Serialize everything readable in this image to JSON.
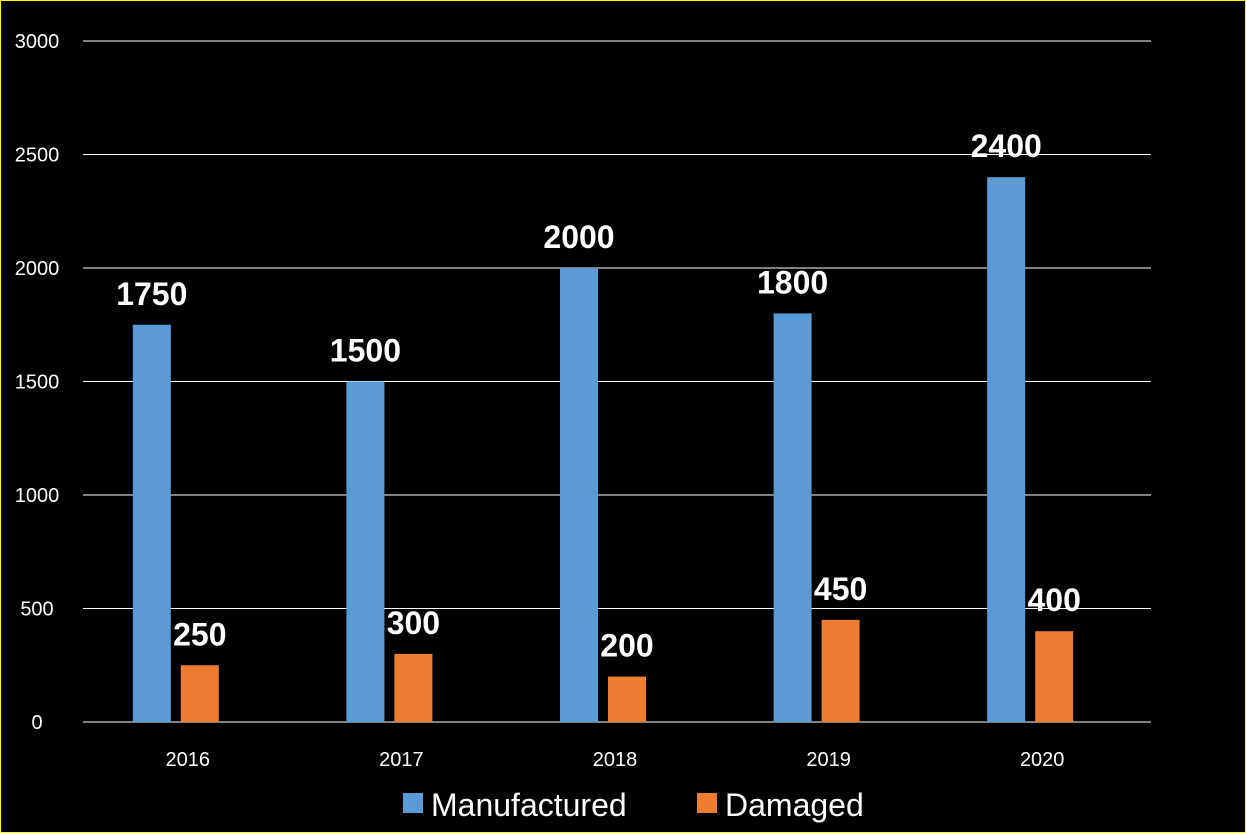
{
  "chart_data": {
    "type": "bar",
    "title": "",
    "xlabel": "",
    "ylabel": "",
    "categories": [
      "2016",
      "2017",
      "2018",
      "2019",
      "2020"
    ],
    "series": [
      {
        "name": "Manufactured",
        "color": "#5b9bd5",
        "values": [
          1750,
          1500,
          2000,
          1800,
          2400
        ]
      },
      {
        "name": "Damaged",
        "color": "#ed7d31",
        "values": [
          250,
          300,
          200,
          450,
          400
        ]
      }
    ],
    "ylim": [
      0,
      3000
    ],
    "yticks": [
      0,
      500,
      1000,
      1500,
      2000,
      2500,
      3000
    ],
    "grid": true,
    "legend_position": "bottom",
    "background": "#000000",
    "border_color": "#ffff00",
    "text_color": "#ffffff",
    "gridline_color": "#ffffff"
  }
}
